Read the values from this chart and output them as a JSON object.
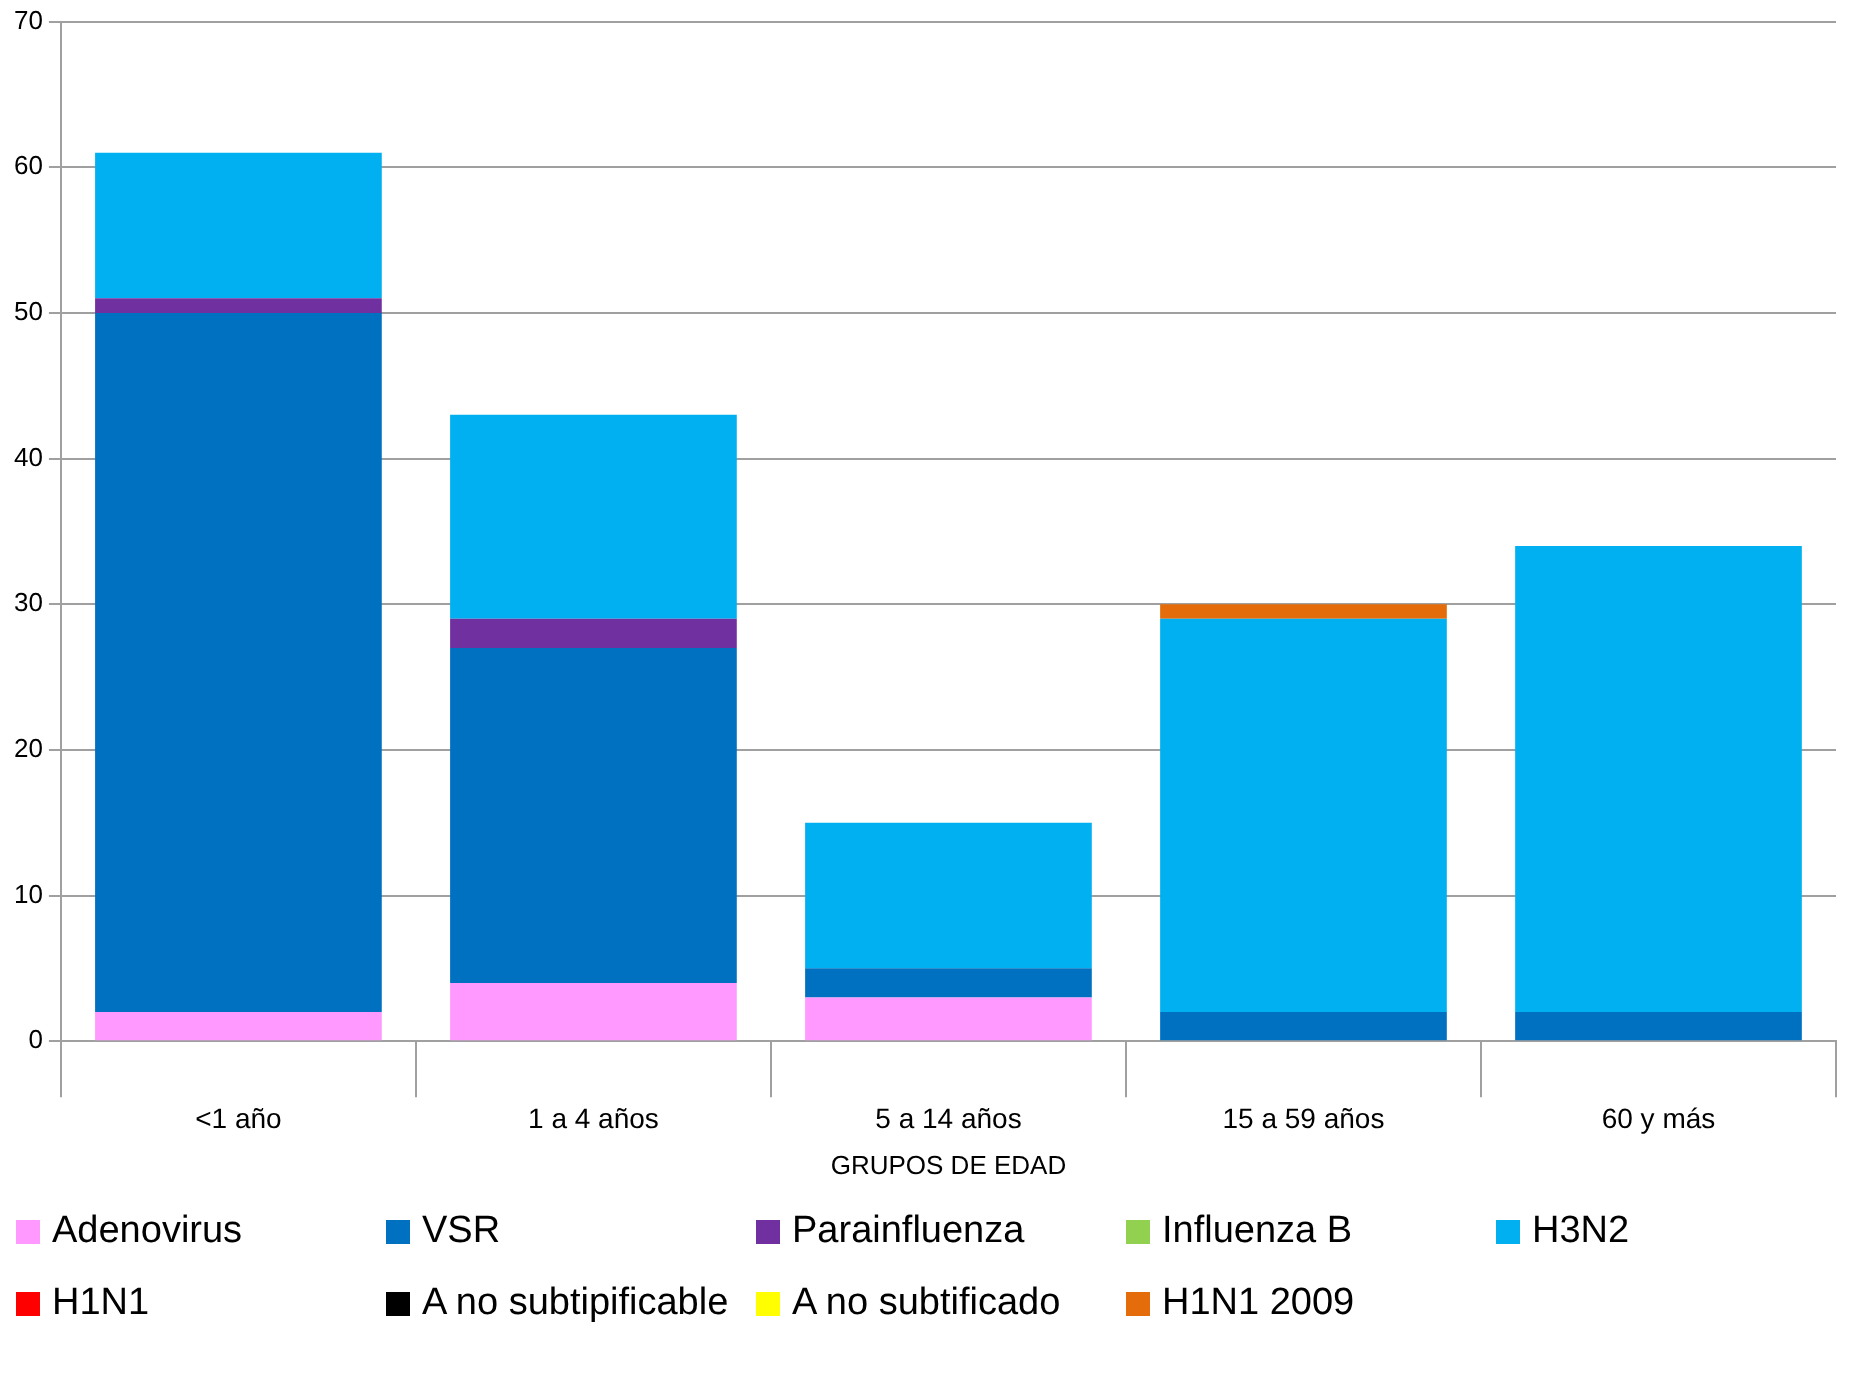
{
  "chart_data": {
    "type": "bar",
    "stacked": true,
    "xlabel": "GRUPOS DE EDAD",
    "categories": [
      "<1 año",
      "1 a 4 años",
      "5 a 14 años",
      "15 a 59 años",
      "60 y más"
    ],
    "series": [
      {
        "name": "Adenovirus",
        "color": "#ff99ff",
        "values": [
          2,
          4,
          3,
          0,
          0
        ]
      },
      {
        "name": "VSR",
        "color": "#0070c0",
        "values": [
          48,
          23,
          2,
          2,
          2
        ]
      },
      {
        "name": "Parainfluenza",
        "color": "#7030a0",
        "values": [
          1,
          2,
          0,
          0,
          0
        ]
      },
      {
        "name": "Influenza  B",
        "color": "#92d050",
        "values": [
          0,
          0,
          0,
          0,
          0
        ]
      },
      {
        "name": "H3N2",
        "color": "#00b0f0",
        "values": [
          10,
          14,
          10,
          27,
          32
        ]
      },
      {
        "name": "H1N1",
        "color": "#ff0000",
        "values": [
          0,
          0,
          0,
          0,
          0
        ]
      },
      {
        "name": "A no subtipificable",
        "color": "#000000",
        "values": [
          0,
          0,
          0,
          0,
          0
        ]
      },
      {
        "name": "A no subtificado",
        "color": "#ffff00",
        "values": [
          0,
          0,
          0,
          0,
          0
        ]
      },
      {
        "name": "H1N1 2009",
        "color": "#e46c0a",
        "values": [
          0,
          0,
          0,
          1,
          0
        ]
      }
    ],
    "ylim": [
      0,
      70
    ],
    "yticks": [
      0,
      10,
      20,
      30,
      40,
      50,
      60,
      70
    ],
    "grid": "y",
    "legend": "bottom"
  }
}
